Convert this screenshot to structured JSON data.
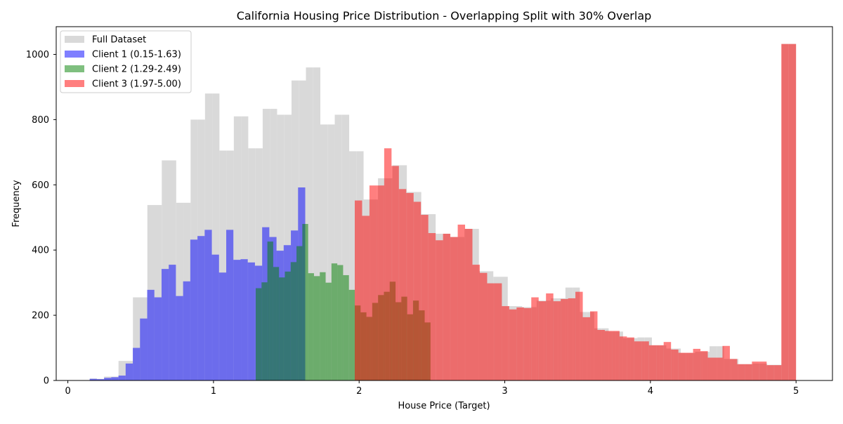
{
  "chart_data": {
    "type": "histogram",
    "title": "California Housing Price Distribution - Overlapping Split with 30% Overlap",
    "xlabel": "House Price (Target)",
    "ylabel": "Frequency",
    "xlim": [
      -0.08,
      5.25
    ],
    "ylim": [
      0,
      1085
    ],
    "xticks": [
      0,
      1,
      2,
      3,
      4,
      5
    ],
    "yticks": [
      0,
      200,
      400,
      600,
      800,
      1000
    ],
    "legend_position": "upper-left",
    "series": [
      {
        "name": "Full Dataset",
        "color": "#d9d9d9",
        "alpha": 1.0,
        "range": [
          0.15,
          5.0
        ],
        "counts": [
          6,
          5,
          12,
          12,
          60,
          60,
          255,
          255,
          538,
          538,
          675,
          675,
          545,
          545,
          800,
          800,
          880,
          880,
          705,
          705,
          810,
          810,
          712,
          712,
          833,
          833,
          815,
          815,
          920,
          920,
          960,
          960,
          785,
          785,
          815,
          815,
          703,
          703,
          555,
          555,
          620,
          620,
          660,
          660,
          578,
          578,
          510,
          510,
          450,
          450,
          440,
          440,
          465,
          465,
          335,
          335,
          318,
          318,
          228,
          228,
          225,
          225,
          245,
          245,
          252,
          252,
          285,
          285,
          210,
          210,
          160,
          160,
          150,
          150,
          130,
          130,
          132,
          132,
          108,
          108,
          98,
          98,
          84,
          84,
          88,
          88,
          105,
          105,
          66,
          66,
          50,
          50,
          52,
          52,
          48,
          48,
          1032,
          1032
        ]
      },
      {
        "name": "Client 1 (0.15-1.63)",
        "color": "#0000ff",
        "alpha": 0.5,
        "range": [
          0.15,
          1.63
        ],
        "counts": [
          5,
          4,
          8,
          10,
          15,
          52,
          100,
          190,
          278,
          255,
          342,
          355,
          259,
          304,
          432,
          443,
          462,
          386,
          331,
          462,
          370,
          372,
          362,
          352,
          470,
          440,
          398,
          415,
          460,
          592
        ]
      },
      {
        "name": "Client 2 (1.29-2.49)",
        "color": "#008000",
        "alpha": 0.5,
        "range": [
          1.29,
          2.49
        ],
        "counts": [
          283,
          301,
          426,
          348,
          316,
          334,
          363,
          412,
          480,
          329,
          320,
          332,
          300,
          359,
          354,
          323,
          278,
          230,
          209,
          195,
          238,
          262,
          272,
          303,
          240,
          257,
          203,
          245,
          215,
          178
        ]
      },
      {
        "name": "Client 3 (1.97-5.00)",
        "color": "#ff0000",
        "alpha": 0.5,
        "range": [
          1.97,
          5.0
        ],
        "counts": [
          552,
          505,
          598,
          598,
          712,
          658,
          587,
          575,
          548,
          508,
          452,
          430,
          450,
          440,
          478,
          465,
          355,
          330,
          298,
          298,
          228,
          218,
          224,
          222,
          255,
          243,
          267,
          243,
          250,
          252,
          272,
          194,
          212,
          155,
          152,
          152,
          135,
          132,
          120,
          120,
          108,
          108,
          118,
          95,
          85,
          85,
          97,
          90,
          70,
          70,
          106,
          66,
          50,
          50,
          58,
          58,
          47,
          47,
          1032,
          1032
        ]
      }
    ]
  }
}
